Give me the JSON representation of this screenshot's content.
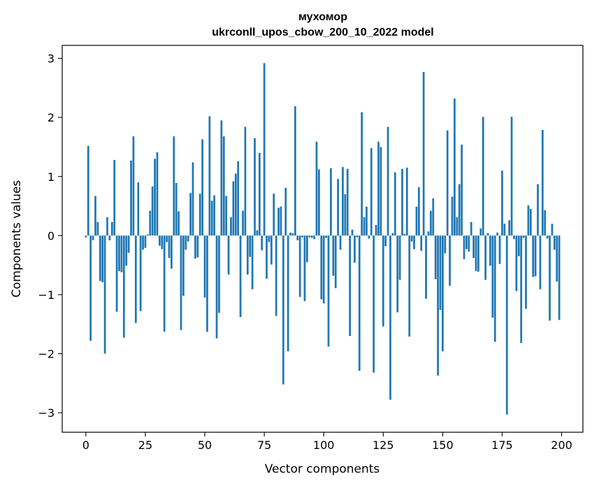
{
  "chart_data": {
    "type": "bar",
    "title": "мухомор",
    "subtitle": "ukrconll_upos_cbow_200_10_2022 model",
    "xlabel": "Vector components",
    "ylabel": "Components values",
    "xlim": [
      -9.95,
      208.95
    ],
    "ylim": [
      -3.33,
      3.22
    ],
    "xticks": [
      0,
      25,
      50,
      75,
      100,
      125,
      150,
      175,
      200
    ],
    "yticks": [
      -3,
      -2,
      -1,
      0,
      1,
      2,
      3
    ],
    "ytick_labels": [
      "−3",
      "−2",
      "−1",
      "0",
      "1",
      "2",
      "3"
    ],
    "grid": false,
    "bar_color": "#1f77b4",
    "x": [
      0,
      1,
      2,
      3,
      4,
      5,
      6,
      7,
      8,
      9,
      10,
      11,
      12,
      13,
      14,
      15,
      16,
      17,
      18,
      19,
      20,
      21,
      22,
      23,
      24,
      25,
      26,
      27,
      28,
      29,
      30,
      31,
      32,
      33,
      34,
      35,
      36,
      37,
      38,
      39,
      40,
      41,
      42,
      43,
      44,
      45,
      46,
      47,
      48,
      49,
      50,
      51,
      52,
      53,
      54,
      55,
      56,
      57,
      58,
      59,
      60,
      61,
      62,
      63,
      64,
      65,
      66,
      67,
      68,
      69,
      70,
      71,
      72,
      73,
      74,
      75,
      76,
      77,
      78,
      79,
      80,
      81,
      82,
      83,
      84,
      85,
      86,
      87,
      88,
      89,
      90,
      91,
      92,
      93,
      94,
      95,
      96,
      97,
      98,
      99,
      100,
      101,
      102,
      103,
      104,
      105,
      106,
      107,
      108,
      109,
      110,
      111,
      112,
      113,
      114,
      115,
      116,
      117,
      118,
      119,
      120,
      121,
      122,
      123,
      124,
      125,
      126,
      127,
      128,
      129,
      130,
      131,
      132,
      133,
      134,
      135,
      136,
      137,
      138,
      139,
      140,
      141,
      142,
      143,
      144,
      145,
      146,
      147,
      148,
      149,
      150,
      151,
      152,
      153,
      154,
      155,
      156,
      157,
      158,
      159,
      160,
      161,
      162,
      163,
      164,
      165,
      166,
      167,
      168,
      169,
      170,
      171,
      172,
      173,
      174,
      175,
      176,
      177,
      178,
      179,
      180,
      181,
      182,
      183,
      184,
      185,
      186,
      187,
      188,
      189,
      190,
      191,
      192,
      193,
      194,
      195,
      196,
      197,
      198,
      199
    ],
    "values": [
      -0.03,
      1.52,
      -1.78,
      -0.08,
      0.67,
      0.23,
      -0.77,
      -0.79,
      -2.0,
      0.31,
      -0.08,
      0.23,
      1.28,
      -1.29,
      -0.6,
      -0.62,
      -1.73,
      -0.51,
      -0.29,
      1.27,
      1.68,
      -1.48,
      0.9,
      -1.28,
      -0.24,
      -0.21,
      0.02,
      0.42,
      0.83,
      1.3,
      1.41,
      -0.17,
      -0.23,
      -1.63,
      -0.11,
      -0.38,
      -0.56,
      1.68,
      0.89,
      0.41,
      -1.6,
      -1.02,
      -0.24,
      -0.1,
      0.72,
      1.24,
      -0.39,
      -0.37,
      0.71,
      1.63,
      -1.05,
      -1.63,
      2.02,
      0.59,
      0.68,
      -1.74,
      -1.31,
      1.95,
      1.68,
      0.67,
      -0.66,
      0.31,
      0.92,
      1.05,
      1.26,
      -1.38,
      0.42,
      1.84,
      -0.66,
      -0.36,
      -0.91,
      1.65,
      0.09,
      1.4,
      -0.25,
      2.92,
      -0.73,
      -0.11,
      -0.49,
      0.71,
      -1.36,
      0.47,
      0.49,
      -2.52,
      0.81,
      -1.96,
      0.05,
      0.04,
      2.19,
      -0.08,
      -1.04,
      -0.03,
      -1.11,
      -0.45,
      -0.03,
      -0.04,
      -0.06,
      1.59,
      1.12,
      -1.08,
      -1.15,
      -0.04,
      -1.88,
      1.14,
      -0.68,
      -0.89,
      0.96,
      -0.24,
      1.16,
      0.7,
      1.13,
      -1.7,
      0.1,
      -0.46,
      -0.03,
      -2.29,
      2.09,
      0.31,
      0.49,
      -0.05,
      1.48,
      -2.32,
      0.18,
      1.59,
      1.5,
      -1.54,
      -0.18,
      1.84,
      -2.78,
      0.04,
      1.07,
      -1.3,
      -0.75,
      1.13,
      0.03,
      1.15,
      -1.71,
      -0.1,
      -0.23,
      0.49,
      0.82,
      -0.26,
      2.77,
      -1.07,
      0.07,
      0.42,
      0.63,
      -0.74,
      -2.37,
      -1.26,
      -1.96,
      -0.3,
      1.78,
      -0.85,
      0.66,
      2.32,
      0.31,
      0.87,
      1.54,
      -0.4,
      -0.23,
      -0.27,
      0.23,
      -0.38,
      -0.6,
      -0.61,
      0.12,
      2.01,
      -0.75,
      0.04,
      -0.51,
      -1.39,
      -1.8,
      0.05,
      -0.48,
      1.1,
      0.2,
      -3.03,
      0.26,
      2.01,
      -0.06,
      -0.94,
      -0.35,
      -1.82,
      -0.04,
      -1.24,
      0.51,
      0.45,
      -0.7,
      -0.69,
      0.87,
      -0.91,
      1.79,
      0.43,
      -0.05,
      -1.44,
      0.2,
      -0.24,
      -0.78,
      -1.43
    ]
  }
}
